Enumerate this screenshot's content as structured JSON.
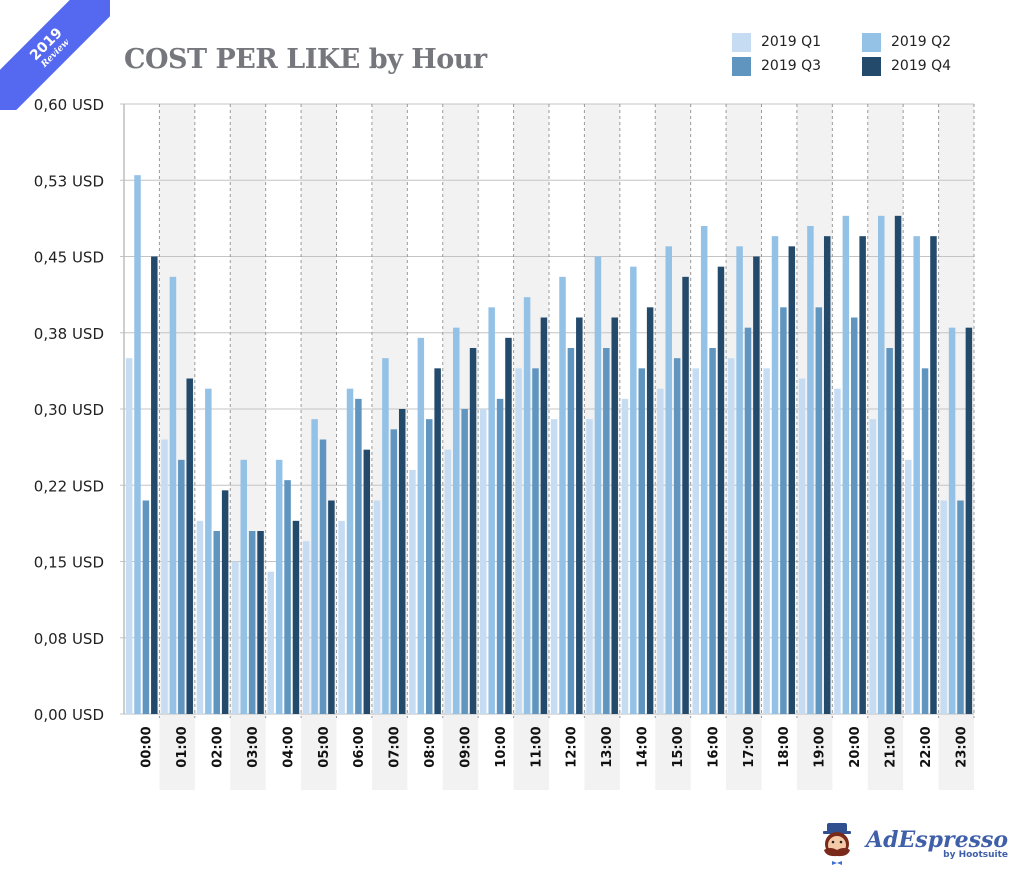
{
  "badge": {
    "year": "2019",
    "label": "Review",
    "color": "#5468f0"
  },
  "logo": {
    "brand": "AdEspresso",
    "sub": "by Hootsuite"
  },
  "chart_data": {
    "type": "bar",
    "title": "COST PER LIKE by Hour",
    "xlabel": "",
    "ylabel": "",
    "ylim": [
      0,
      0.6
    ],
    "yticks": [
      0,
      0.075,
      0.15,
      0.225,
      0.3,
      0.375,
      0.45,
      0.525,
      0.6
    ],
    "ytick_labels": [
      "0,00 USD",
      "0,08 USD",
      "0,15 USD",
      "0,22 USD",
      "0,30 USD",
      "0,38 USD",
      "0,45 USD",
      "0,53 USD",
      "0,60 USD"
    ],
    "grid": true,
    "legend_position": "top-right",
    "categories": [
      "00:00",
      "01:00",
      "02:00",
      "03:00",
      "04:00",
      "05:00",
      "06:00",
      "07:00",
      "08:00",
      "09:00",
      "10:00",
      "11:00",
      "12:00",
      "13:00",
      "14:00",
      "15:00",
      "16:00",
      "17:00",
      "18:00",
      "19:00",
      "20:00",
      "21:00",
      "22:00",
      "23:00"
    ],
    "series": [
      {
        "name": "2019 Q1",
        "color": "#c6dcf3",
        "values": [
          0.35,
          0.27,
          0.19,
          0.15,
          0.14,
          0.17,
          0.19,
          0.21,
          0.24,
          0.26,
          0.3,
          0.34,
          0.29,
          0.29,
          0.31,
          0.32,
          0.34,
          0.35,
          0.34,
          0.33,
          0.32,
          0.29,
          0.25,
          0.21
        ]
      },
      {
        "name": "2019 Q2",
        "color": "#94c1e6",
        "values": [
          0.53,
          0.43,
          0.32,
          0.25,
          0.25,
          0.29,
          0.32,
          0.35,
          0.37,
          0.38,
          0.4,
          0.41,
          0.43,
          0.45,
          0.44,
          0.46,
          0.48,
          0.46,
          0.47,
          0.48,
          0.49,
          0.49,
          0.47,
          0.38
        ]
      },
      {
        "name": "2019 Q3",
        "color": "#5f95bf",
        "values": [
          0.21,
          0.25,
          0.18,
          0.18,
          0.23,
          0.27,
          0.31,
          0.28,
          0.29,
          0.3,
          0.31,
          0.34,
          0.36,
          0.36,
          0.34,
          0.35,
          0.36,
          0.38,
          0.4,
          0.4,
          0.39,
          0.36,
          0.34,
          0.21
        ]
      },
      {
        "name": "2019 Q4",
        "color": "#244a6b",
        "values": [
          0.45,
          0.33,
          0.22,
          0.18,
          0.19,
          0.21,
          0.26,
          0.3,
          0.34,
          0.36,
          0.37,
          0.39,
          0.39,
          0.39,
          0.4,
          0.43,
          0.44,
          0.45,
          0.46,
          0.47,
          0.47,
          0.49,
          0.47,
          0.38
        ]
      }
    ]
  }
}
